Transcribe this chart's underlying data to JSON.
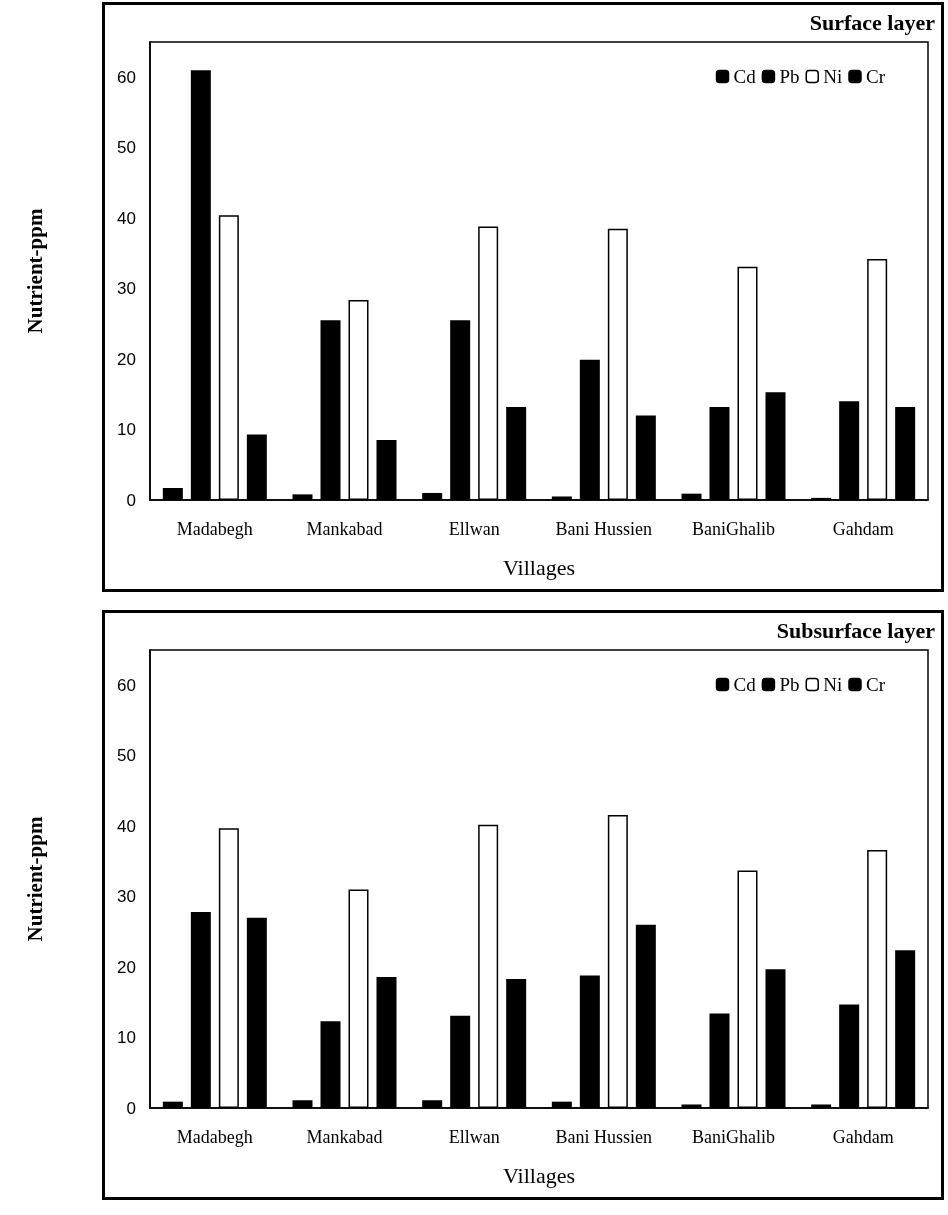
{
  "chart_data": [
    {
      "type": "bar",
      "title": "Surface layer",
      "xlabel": "Villages",
      "ylabel": "Nutrient-ppm",
      "categories": [
        "Madabegh",
        "Mankabad",
        "Ellwan",
        "Bani Hussien",
        "BaniGhalib",
        "Gahdam"
      ],
      "series": [
        {
          "name": "Cd",
          "color": "#000000",
          "values": [
            1.7,
            0.8,
            1.0,
            0.5,
            0.9,
            0.3
          ]
        },
        {
          "name": "Pb",
          "color": "#000000",
          "values": [
            61,
            25.5,
            25.5,
            19.9,
            13.2,
            14.0
          ]
        },
        {
          "name": "Ni",
          "color": "#ffffff",
          "values": [
            40.4,
            28.4,
            38.8,
            38.5,
            33.1,
            34.2
          ]
        },
        {
          "name": "Cr",
          "color": "#000000",
          "values": [
            9.3,
            8.5,
            13.2,
            12.0,
            15.3,
            13.2
          ]
        }
      ],
      "ylim": [
        0,
        65
      ],
      "yticks": [
        0,
        10,
        20,
        30,
        40,
        50,
        60
      ],
      "grid": false,
      "legend": "top right"
    },
    {
      "type": "bar",
      "title": "Subsurface layer",
      "xlabel": "Villages",
      "ylabel": "Nutrient-ppm",
      "categories": [
        "Madabegh",
        "Mankabad",
        "Ellwan",
        "Bani Hussien",
        "BaniGhalib",
        "Gahdam"
      ],
      "series": [
        {
          "name": "Cd",
          "color": "#000000",
          "values": [
            0.9,
            1.1,
            1.1,
            0.9,
            0.5,
            0.5
          ]
        },
        {
          "name": "Pb",
          "color": "#000000",
          "values": [
            27.8,
            12.3,
            13.1,
            18.8,
            13.4,
            14.7
          ]
        },
        {
          "name": "Ni",
          "color": "#ffffff",
          "values": [
            39.7,
            31.0,
            40.2,
            41.6,
            33.7,
            36.6
          ]
        },
        {
          "name": "Cr",
          "color": "#000000",
          "values": [
            27.0,
            18.6,
            18.3,
            26.0,
            19.7,
            22.4
          ]
        }
      ],
      "ylim": [
        0,
        65
      ],
      "yticks": [
        0,
        10,
        20,
        30,
        40,
        50,
        60
      ],
      "grid": false,
      "legend": "top right"
    }
  ]
}
